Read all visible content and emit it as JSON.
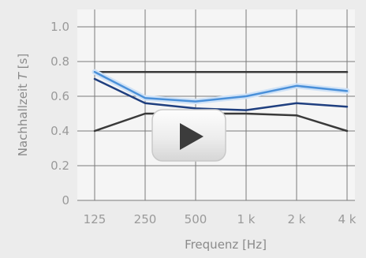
{
  "chart_data": {
    "type": "line",
    "xlabel": "Frequenz [Hz]",
    "ylabel": "Nachhallzeit T [s]",
    "ylabel_parts": {
      "pre": "Nachhallzeit ",
      "var": "T",
      "post": " [s]"
    },
    "categories": [
      "125",
      "250",
      "500",
      "1 k",
      "2 k",
      "4 k"
    ],
    "yticks": [
      "0",
      "0.2",
      "0.4",
      "0.6",
      "0.8",
      "1.0"
    ],
    "ylim": [
      0,
      1.1
    ],
    "grid": true,
    "legend": "none",
    "series": [
      {
        "values": [
          0.74,
          0.74,
          0.74,
          0.74,
          0.74,
          0.74
        ],
        "color": "#3a3a3a"
      },
      {
        "values": [
          0.4,
          0.5,
          0.5,
          0.5,
          0.49,
          0.4
        ],
        "color": "#3a3a3a"
      },
      {
        "values": [
          0.74,
          0.59,
          0.57,
          0.6,
          0.66,
          0.63
        ],
        "color": "#4a90d9",
        "halo": true
      },
      {
        "values": [
          0.7,
          0.56,
          0.53,
          0.52,
          0.56,
          0.54
        ],
        "color": "#1f3f7f"
      }
    ]
  },
  "player": {
    "play_icon": "play-icon"
  }
}
